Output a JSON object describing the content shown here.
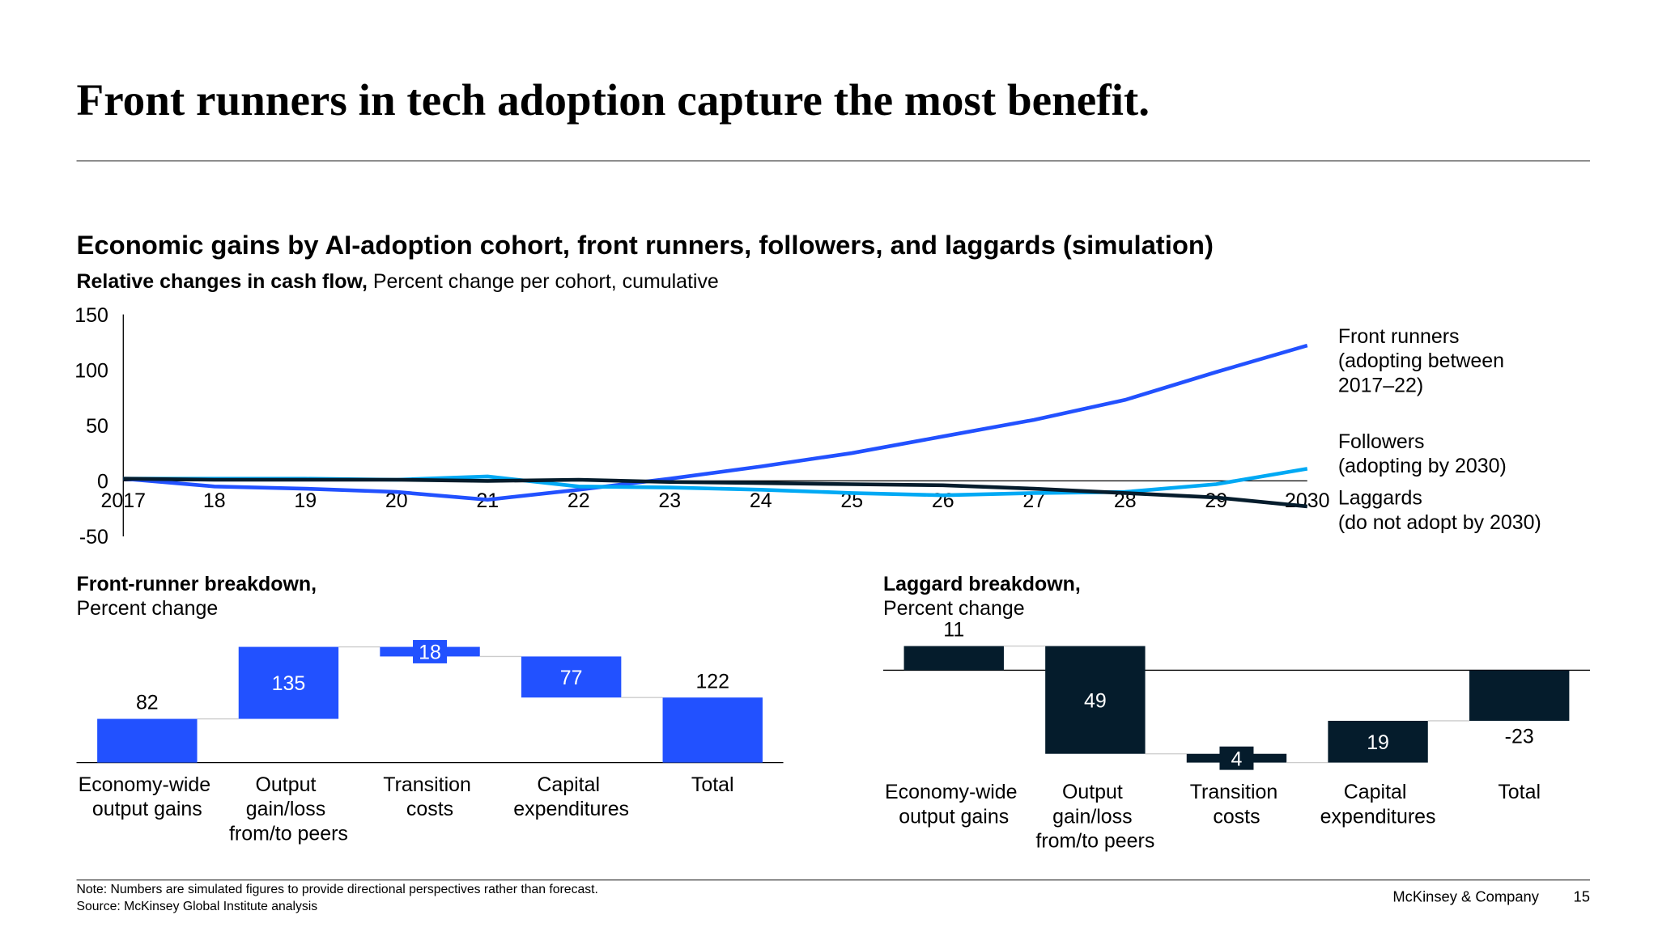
{
  "header": {
    "title": "Front runners in tech adoption capture the most benefit."
  },
  "chart_data": [
    {
      "type": "line",
      "title": "Economic gains by AI-adoption cohort, front runners, followers, and laggards (simulation)",
      "subtitle": "Relative changes in cash flow,",
      "unit": "Percent change per cohort, cumulative",
      "categories": [
        "2017",
        "18",
        "19",
        "20",
        "21",
        "22",
        "23",
        "24",
        "25",
        "26",
        "27",
        "28",
        "29",
        "2030"
      ],
      "series": [
        {
          "name": "Front runners (adopting between 2017–22)",
          "color": "#2251ff",
          "values": [
            2,
            -5,
            -7,
            -10,
            -17,
            -8,
            2,
            13,
            25,
            40,
            55,
            73,
            98,
            122
          ]
        },
        {
          "name": "Followers (adopting by 2030)",
          "color": "#00a9f4",
          "values": [
            2,
            2,
            2,
            1,
            4,
            -5,
            -6,
            -8,
            -11,
            -13,
            -11,
            -10,
            -3,
            11
          ]
        },
        {
          "name": "Laggards (do not adopt by 2030)",
          "color": "#051c2c",
          "values": [
            2,
            1,
            1,
            1,
            0,
            1,
            -1,
            -2,
            -3,
            -4,
            -7,
            -11,
            -15,
            -23
          ]
        }
      ],
      "ylim": [
        -50,
        150
      ],
      "yticks": [
        -50,
        0,
        50,
        100,
        150
      ]
    },
    {
      "type": "waterfall",
      "title": "Front-runner breakdown,",
      "subtitle": "Percent change",
      "categories": [
        "Economy-wide output gains",
        "Output gain/loss from/to peers",
        "Transition costs",
        "Capital expenditures",
        "Total"
      ],
      "values": [
        82,
        135,
        -18,
        -77,
        122
      ],
      "value_labels": [
        "82",
        "135",
        "18",
        "77",
        "122"
      ],
      "color": "#2251ff",
      "ylim": [
        0,
        235
      ]
    },
    {
      "type": "waterfall",
      "title": "Laggard breakdown,",
      "subtitle": "Percent change",
      "categories": [
        "Economy-wide output gains",
        "Output gain/loss from/to peers",
        "Transition costs",
        "Capital expenditures",
        "Total"
      ],
      "values": [
        11,
        -49,
        -4,
        19,
        -23
      ],
      "value_labels": [
        "11",
        "49",
        "4",
        "19",
        "-23"
      ],
      "color": "#051c2c",
      "ylim": [
        -42,
        15
      ]
    }
  ],
  "footer": {
    "note": "Note: Numbers are simulated figures to provide directional perspectives rather than forecast.",
    "source": "Source: McKinsey Global Institute analysis",
    "company": "McKinsey & Company",
    "page": "15"
  }
}
